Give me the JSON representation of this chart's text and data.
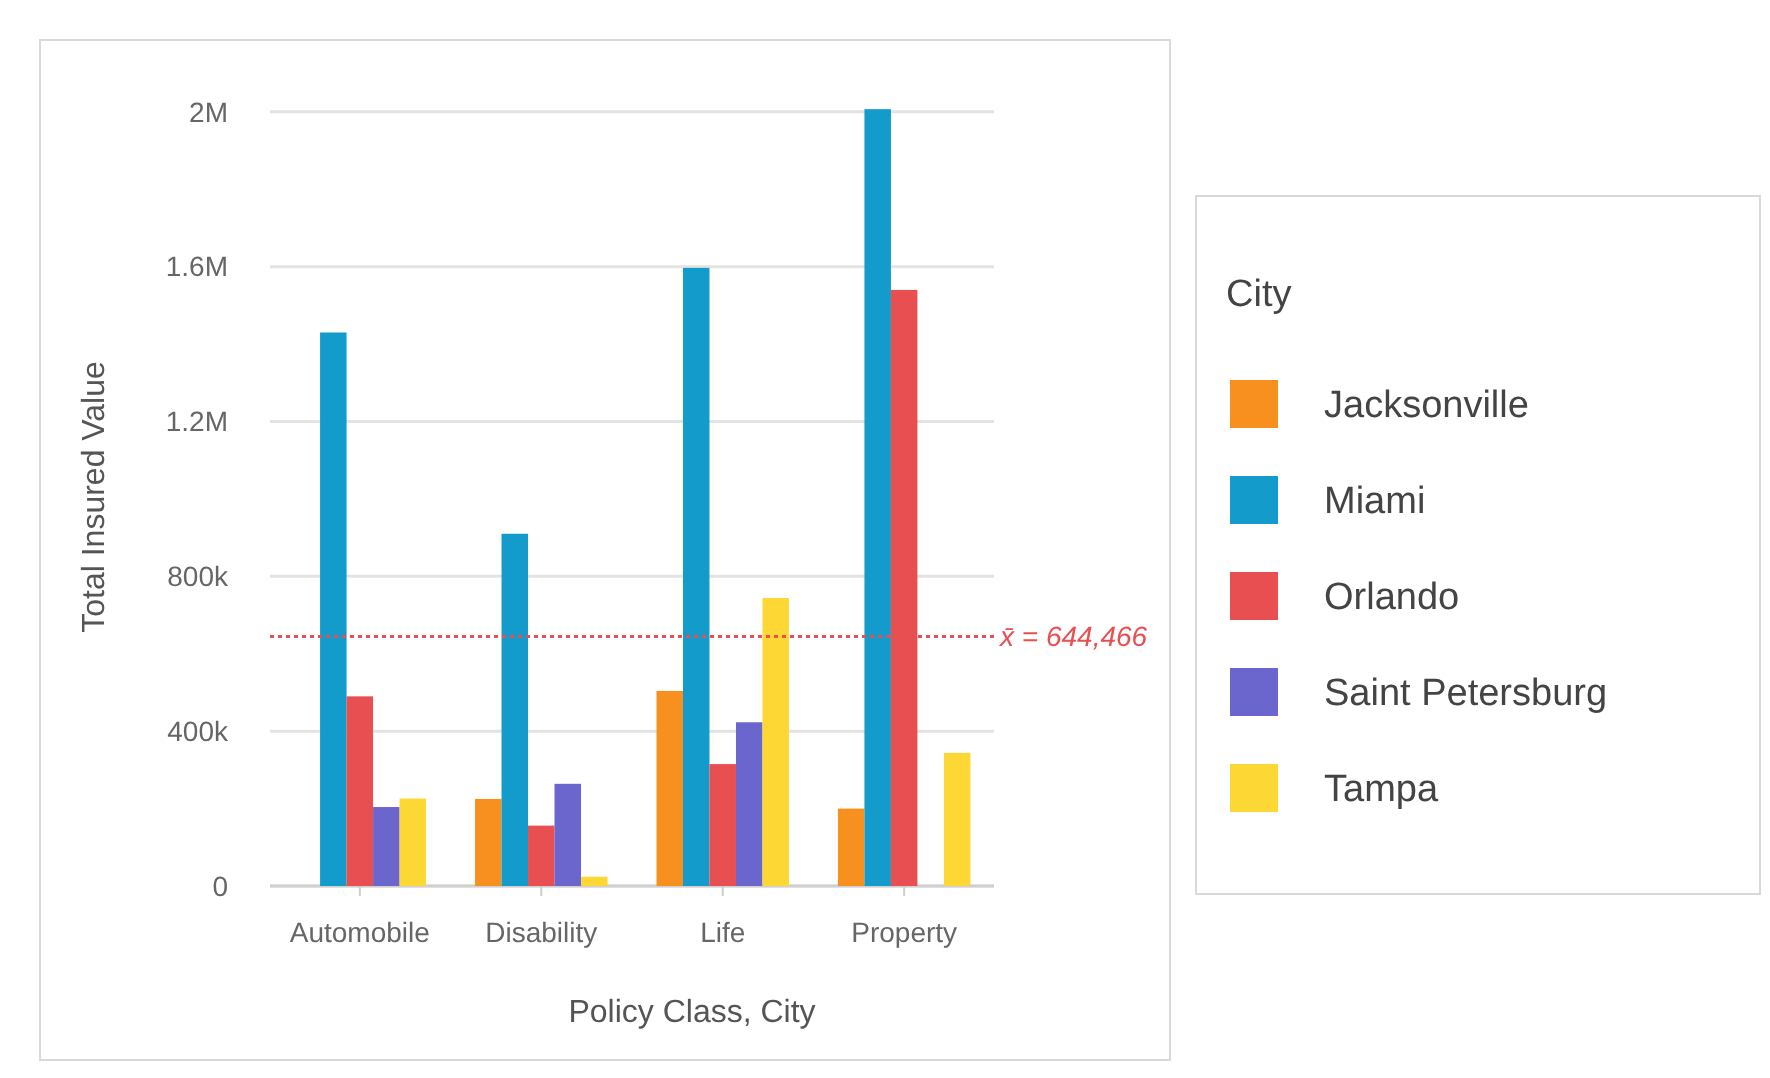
{
  "chart_data": {
    "type": "bar",
    "xlabel": "Policy Class, City",
    "ylabel": "Total Insured Value",
    "legend_title": "City",
    "categories": [
      "Automobile",
      "Disability",
      "Life",
      "Property"
    ],
    "series": [
      {
        "name": "Jacksonville",
        "color": "#f7901e",
        "values": [
          null,
          225000,
          504000,
          200000
        ]
      },
      {
        "name": "Miami",
        "color": "#139bcc",
        "values": [
          1430000,
          910000,
          1597000,
          2007000
        ]
      },
      {
        "name": "Orlando",
        "color": "#e84f51",
        "values": [
          490000,
          156000,
          315000,
          1540000
        ]
      },
      {
        "name": "Saint Petersburg",
        "color": "#6a66cd",
        "values": [
          204000,
          264000,
          423000,
          null
        ]
      },
      {
        "name": "Tampa",
        "color": "#fdd835",
        "values": [
          226000,
          24000,
          744000,
          344000
        ]
      }
    ],
    "ylim": [
      0,
      2010000
    ],
    "yticks": [
      {
        "value": 0,
        "label": "0"
      },
      {
        "value": 400000,
        "label": "400k"
      },
      {
        "value": 800000,
        "label": "800k"
      },
      {
        "value": 1200000,
        "label": "1.2M"
      },
      {
        "value": 1600000,
        "label": "1.6M"
      },
      {
        "value": 2000000,
        "label": "2M"
      }
    ],
    "grid": "y",
    "legend": "right",
    "ref_lines": [
      {
        "axis": "y",
        "value": 644466,
        "label": "x̄ = 644,466",
        "color": "#e84f51",
        "line_style": "dotted"
      }
    ]
  }
}
